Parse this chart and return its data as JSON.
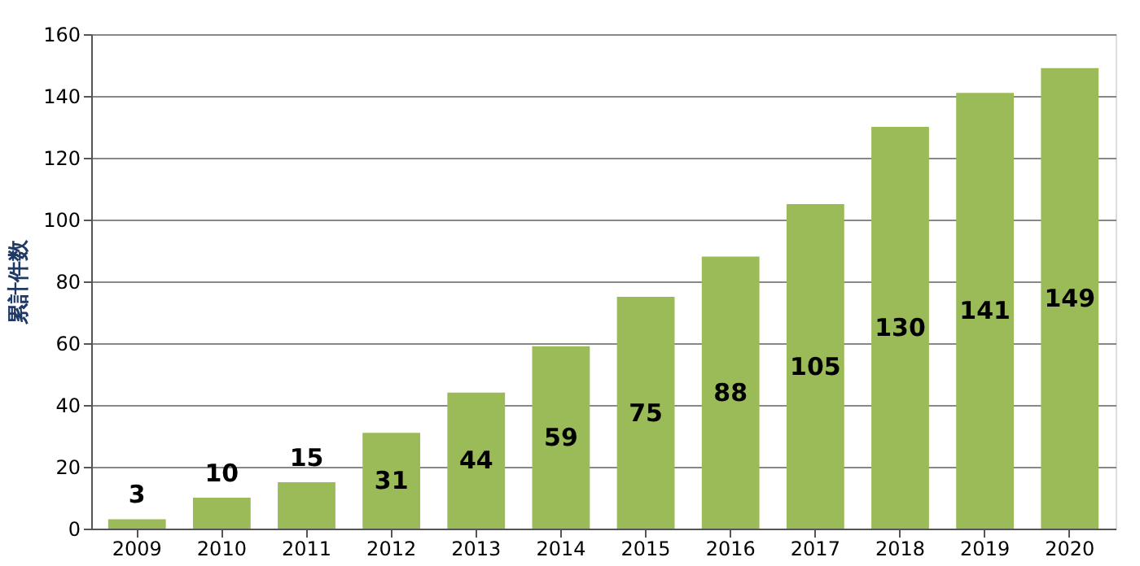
{
  "chart_data": {
    "type": "bar",
    "ylabel": "累計件数",
    "categories": [
      "2009",
      "2010",
      "2011",
      "2012",
      "2013",
      "2014",
      "2015",
      "2016",
      "2017",
      "2018",
      "2019",
      "2020"
    ],
    "values": [
      3,
      10,
      15,
      31,
      44,
      59,
      75,
      88,
      105,
      130,
      141,
      149
    ],
    "color": "#9bbb59",
    "ylim": [
      0,
      160
    ],
    "yticks": [
      0,
      20,
      40,
      60,
      80,
      100,
      120,
      140,
      160
    ],
    "grid": "y",
    "data_labels": true
  }
}
